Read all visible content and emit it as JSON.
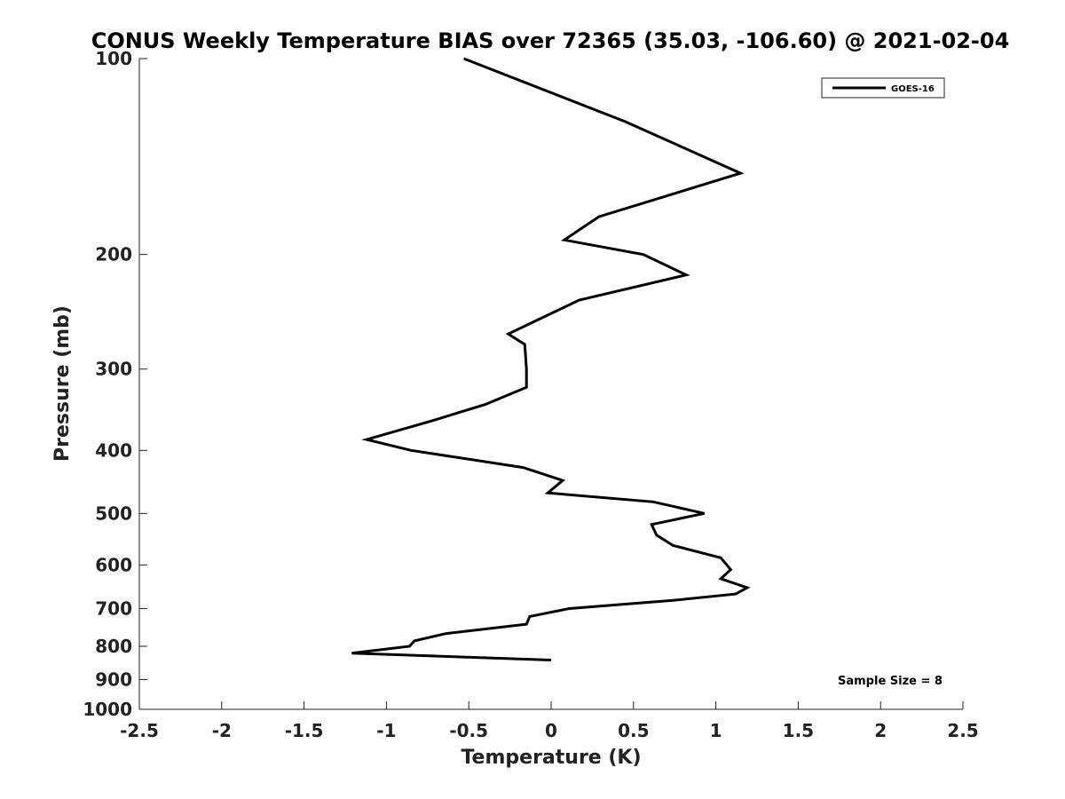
{
  "chart_data": {
    "type": "line",
    "title": "CONUS Weekly Temperature BIAS over 72365 (35.03, -106.60) @ 2021-02-04",
    "xlabel": "Temperature (K)",
    "ylabel": "Pressure (mb)",
    "xlim": [
      -2.5,
      2.5
    ],
    "ylim": [
      1000,
      100
    ],
    "y_scale": "log",
    "y_reversed": true,
    "grid": false,
    "legend_position": "top-right",
    "x_ticks": [
      -2.5,
      -2,
      -1.5,
      -1,
      -0.5,
      0,
      0.5,
      1,
      1.5,
      2,
      2.5
    ],
    "x_tick_labels": [
      "-2.5",
      "-2",
      "-1.5",
      "-1",
      "-0.5",
      "0",
      "0.5",
      "1",
      "1.5",
      "2",
      "2.5"
    ],
    "y_ticks": [
      100,
      200,
      300,
      400,
      500,
      600,
      700,
      800,
      900,
      1000
    ],
    "y_tick_labels": [
      "100",
      "200",
      "300",
      "400",
      "500",
      "600",
      "700",
      "800",
      "900",
      "1000"
    ],
    "series": [
      {
        "name": "GOES-16",
        "color": "#000000",
        "points": [
          {
            "x": -0.53,
            "p": 100
          },
          {
            "x": 0.45,
            "p": 125
          },
          {
            "x": 1.15,
            "p": 150
          },
          {
            "x": 0.29,
            "p": 175
          },
          {
            "x": 0.08,
            "p": 190
          },
          {
            "x": 0.56,
            "p": 200
          },
          {
            "x": 0.82,
            "p": 215
          },
          {
            "x": 0.17,
            "p": 235
          },
          {
            "x": -0.26,
            "p": 265
          },
          {
            "x": -0.16,
            "p": 275
          },
          {
            "x": -0.15,
            "p": 300
          },
          {
            "x": -0.15,
            "p": 320
          },
          {
            "x": -0.4,
            "p": 340
          },
          {
            "x": -0.72,
            "p": 360
          },
          {
            "x": -1.12,
            "p": 385
          },
          {
            "x": -0.85,
            "p": 400
          },
          {
            "x": -0.17,
            "p": 425
          },
          {
            "x": 0.07,
            "p": 445
          },
          {
            "x": -0.02,
            "p": 465
          },
          {
            "x": 0.62,
            "p": 480
          },
          {
            "x": 0.93,
            "p": 500
          },
          {
            "x": 0.61,
            "p": 520
          },
          {
            "x": 0.64,
            "p": 540
          },
          {
            "x": 0.74,
            "p": 560
          },
          {
            "x": 1.03,
            "p": 585
          },
          {
            "x": 1.09,
            "p": 610
          },
          {
            "x": 1.03,
            "p": 630
          },
          {
            "x": 1.19,
            "p": 650
          },
          {
            "x": 1.12,
            "p": 665
          },
          {
            "x": 0.74,
            "p": 680
          },
          {
            "x": 0.11,
            "p": 700
          },
          {
            "x": -0.13,
            "p": 720
          },
          {
            "x": -0.15,
            "p": 740
          },
          {
            "x": -0.64,
            "p": 765
          },
          {
            "x": -0.83,
            "p": 785
          },
          {
            "x": -0.86,
            "p": 800
          },
          {
            "x": -1.21,
            "p": 820
          },
          {
            "x": 0.0,
            "p": 840
          }
        ]
      }
    ]
  },
  "annotation": {
    "sample_size": "Sample Size = 8"
  }
}
